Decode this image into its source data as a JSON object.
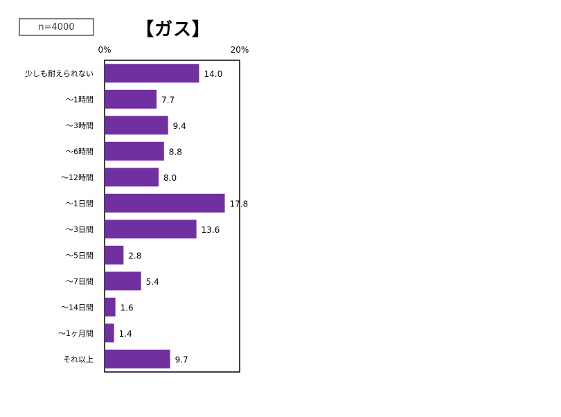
{
  "sample_label": "n=4000",
  "chart_data": {
    "type": "bar",
    "orientation": "horizontal",
    "title": "【ガス】",
    "categories": [
      "少しも耐えられない",
      "～1時間",
      "～3時間",
      "～6時間",
      "～12時間",
      "～1日間",
      "～3日間",
      "～5日間",
      "～7日間",
      "～14日間",
      "～1ヶ月間",
      "それ以上"
    ],
    "values": [
      14.0,
      7.7,
      9.4,
      8.8,
      8.0,
      17.8,
      13.6,
      2.8,
      5.4,
      1.6,
      1.4,
      9.7
    ],
    "value_labels": [
      "14.0",
      "7.7",
      "9.4",
      "8.8",
      "8.0",
      "17.8",
      "13.6",
      "2.8",
      "5.4",
      "1.6",
      "1.4",
      "9.7"
    ],
    "xlim": [
      0,
      20
    ],
    "tick_labels": [
      "0%",
      "20%"
    ],
    "bar_color": "#7030a0",
    "grid": false,
    "legend": "none"
  }
}
